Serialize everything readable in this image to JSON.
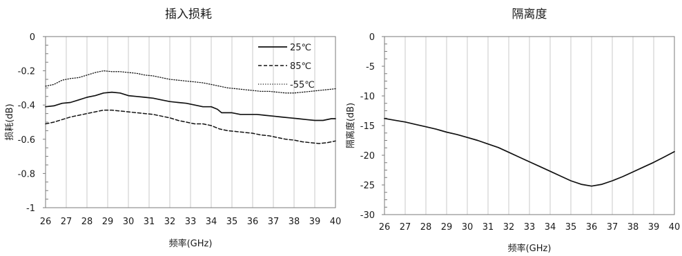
{
  "chart_data": [
    {
      "type": "line",
      "title": "插入损耗",
      "xlabel": "频率(GHz)",
      "ylabel": "损耗(dB)",
      "xlim": [
        26,
        40
      ],
      "ylim": [
        -1,
        0
      ],
      "x_ticks": [
        26,
        27,
        28,
        29,
        30,
        31,
        32,
        33,
        34,
        35,
        36,
        37,
        38,
        39,
        40
      ],
      "x_tick_labels": [
        "26",
        "27",
        "28",
        "29",
        "30",
        "31",
        "32",
        "33",
        "34",
        "35",
        "36",
        "37",
        "38",
        "39",
        "40"
      ],
      "y_ticks": [
        0,
        -0.2,
        -0.4,
        -0.6,
        -0.8,
        -1
      ],
      "y_tick_labels": [
        "0",
        "-0.2",
        "-0.4",
        "-0.6",
        "-0.8",
        "-1"
      ],
      "grid": "vertical",
      "legend_position": "top-right",
      "series": [
        {
          "name": "25℃",
          "style": "solid",
          "points": [
            [
              26,
              -0.41
            ],
            [
              26.4,
              -0.405
            ],
            [
              26.8,
              -0.39
            ],
            [
              27.2,
              -0.385
            ],
            [
              27.6,
              -0.37
            ],
            [
              28,
              -0.355
            ],
            [
              28.4,
              -0.345
            ],
            [
              28.8,
              -0.33
            ],
            [
              29.2,
              -0.325
            ],
            [
              29.6,
              -0.33
            ],
            [
              30,
              -0.345
            ],
            [
              30.4,
              -0.35
            ],
            [
              30.8,
              -0.355
            ],
            [
              31.2,
              -0.36
            ],
            [
              31.6,
              -0.37
            ],
            [
              32,
              -0.38
            ],
            [
              32.4,
              -0.385
            ],
            [
              32.8,
              -0.39
            ],
            [
              33.2,
              -0.4
            ],
            [
              33.6,
              -0.41
            ],
            [
              34,
              -0.41
            ],
            [
              34.3,
              -0.425
            ],
            [
              34.5,
              -0.445
            ],
            [
              35,
              -0.445
            ],
            [
              35.4,
              -0.455
            ],
            [
              35.8,
              -0.455
            ],
            [
              36.2,
              -0.455
            ],
            [
              36.6,
              -0.46
            ],
            [
              37,
              -0.465
            ],
            [
              37.4,
              -0.47
            ],
            [
              37.8,
              -0.475
            ],
            [
              38.2,
              -0.48
            ],
            [
              38.6,
              -0.485
            ],
            [
              39,
              -0.49
            ],
            [
              39.4,
              -0.49
            ],
            [
              39.8,
              -0.48
            ],
            [
              40,
              -0.48
            ]
          ]
        },
        {
          "name": "85℃",
          "style": "dashed",
          "points": [
            [
              26,
              -0.51
            ],
            [
              26.4,
              -0.5
            ],
            [
              26.8,
              -0.485
            ],
            [
              27.2,
              -0.47
            ],
            [
              27.6,
              -0.46
            ],
            [
              28,
              -0.45
            ],
            [
              28.4,
              -0.44
            ],
            [
              28.8,
              -0.43
            ],
            [
              29.2,
              -0.43
            ],
            [
              29.6,
              -0.435
            ],
            [
              30,
              -0.44
            ],
            [
              30.4,
              -0.445
            ],
            [
              30.8,
              -0.45
            ],
            [
              31.2,
              -0.455
            ],
            [
              31.6,
              -0.465
            ],
            [
              32,
              -0.475
            ],
            [
              32.4,
              -0.49
            ],
            [
              32.8,
              -0.5
            ],
            [
              33.2,
              -0.51
            ],
            [
              33.6,
              -0.51
            ],
            [
              34,
              -0.52
            ],
            [
              34.4,
              -0.54
            ],
            [
              34.8,
              -0.55
            ],
            [
              35.2,
              -0.555
            ],
            [
              35.6,
              -0.56
            ],
            [
              36,
              -0.565
            ],
            [
              36.4,
              -0.575
            ],
            [
              36.8,
              -0.58
            ],
            [
              37.2,
              -0.59
            ],
            [
              37.6,
              -0.6
            ],
            [
              38,
              -0.605
            ],
            [
              38.4,
              -0.615
            ],
            [
              38.8,
              -0.62
            ],
            [
              39.2,
              -0.625
            ],
            [
              39.6,
              -0.62
            ],
            [
              40,
              -0.61
            ]
          ]
        },
        {
          "name": "-55℃",
          "style": "dotted",
          "points": [
            [
              26,
              -0.29
            ],
            [
              26.4,
              -0.28
            ],
            [
              26.8,
              -0.255
            ],
            [
              27.2,
              -0.245
            ],
            [
              27.6,
              -0.24
            ],
            [
              28,
              -0.225
            ],
            [
              28.4,
              -0.21
            ],
            [
              28.8,
              -0.2
            ],
            [
              29.2,
              -0.205
            ],
            [
              29.6,
              -0.205
            ],
            [
              30,
              -0.21
            ],
            [
              30.4,
              -0.215
            ],
            [
              30.8,
              -0.225
            ],
            [
              31.2,
              -0.23
            ],
            [
              31.6,
              -0.24
            ],
            [
              32,
              -0.25
            ],
            [
              32.4,
              -0.255
            ],
            [
              32.8,
              -0.26
            ],
            [
              33.2,
              -0.265
            ],
            [
              33.6,
              -0.27
            ],
            [
              34,
              -0.28
            ],
            [
              34.4,
              -0.29
            ],
            [
              34.8,
              -0.3
            ],
            [
              35.2,
              -0.305
            ],
            [
              35.6,
              -0.31
            ],
            [
              36,
              -0.315
            ],
            [
              36.4,
              -0.32
            ],
            [
              36.8,
              -0.32
            ],
            [
              37.2,
              -0.325
            ],
            [
              37.6,
              -0.33
            ],
            [
              38,
              -0.33
            ],
            [
              38.4,
              -0.325
            ],
            [
              38.8,
              -0.32
            ],
            [
              39.2,
              -0.315
            ],
            [
              39.6,
              -0.31
            ],
            [
              40,
              -0.305
            ]
          ]
        }
      ]
    },
    {
      "type": "line",
      "title": "隔离度",
      "xlabel": "频率(GHz)",
      "ylabel": "隔离度(dB)",
      "xlim": [
        26,
        40
      ],
      "ylim": [
        -30,
        0
      ],
      "x_ticks": [
        26,
        27,
        28,
        29,
        30,
        31,
        32,
        33,
        34,
        35,
        36,
        37,
        38,
        39,
        40
      ],
      "x_tick_labels": [
        "26",
        "27",
        "28",
        "29",
        "30",
        "31",
        "32",
        "33",
        "34",
        "35",
        "36",
        "37",
        "38",
        "39",
        "40"
      ],
      "y_ticks": [
        0,
        -5,
        -10,
        -15,
        -20,
        -25,
        -30
      ],
      "y_tick_labels": [
        "0",
        "-5",
        "-10",
        "-15",
        "-20",
        "-25",
        "-30"
      ],
      "grid": "vertical",
      "series": [
        {
          "name": "",
          "style": "solid",
          "points": [
            [
              26,
              -13.8
            ],
            [
              26.5,
              -14.1
            ],
            [
              27,
              -14.4
            ],
            [
              27.5,
              -14.8
            ],
            [
              28,
              -15.2
            ],
            [
              28.5,
              -15.6
            ],
            [
              29,
              -16.1
            ],
            [
              29.5,
              -16.5
            ],
            [
              30,
              -17.0
            ],
            [
              30.5,
              -17.5
            ],
            [
              31,
              -18.1
            ],
            [
              31.5,
              -18.7
            ],
            [
              32,
              -19.5
            ],
            [
              32.5,
              -20.3
            ],
            [
              33,
              -21.1
            ],
            [
              33.5,
              -21.9
            ],
            [
              34,
              -22.7
            ],
            [
              34.5,
              -23.5
            ],
            [
              35,
              -24.3
            ],
            [
              35.5,
              -24.9
            ],
            [
              36,
              -25.2
            ],
            [
              36.5,
              -24.9
            ],
            [
              37,
              -24.3
            ],
            [
              37.5,
              -23.6
            ],
            [
              38,
              -22.8
            ],
            [
              38.5,
              -22.0
            ],
            [
              39,
              -21.2
            ],
            [
              39.5,
              -20.3
            ],
            [
              40,
              -19.4
            ]
          ]
        }
      ]
    }
  ]
}
